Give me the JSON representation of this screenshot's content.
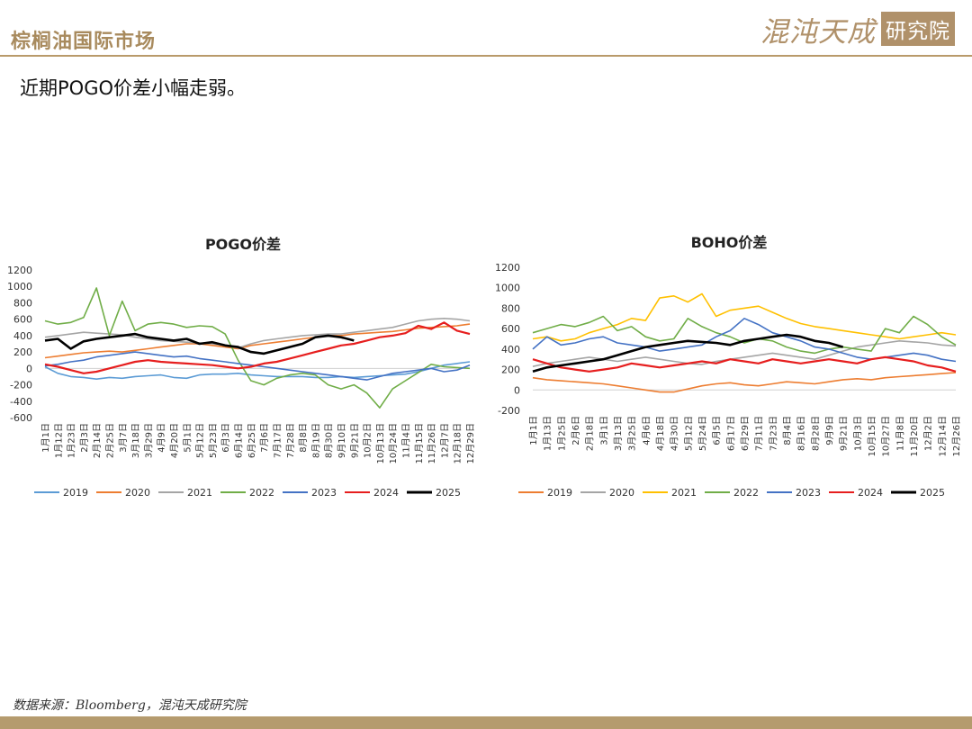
{
  "header": {
    "title": "棕榈油国际市场"
  },
  "logo": {
    "main": "混沌天成",
    "box": "研究院"
  },
  "subtitle": "近期POGO价差小幅走弱。",
  "footer": {
    "source": "数据来源：Bloomberg，混沌天成研究院"
  },
  "colors": {
    "accent": "#b99a6a"
  },
  "chart_data": [
    {
      "type": "line",
      "title": "POGO价差",
      "ylim": [
        -600,
        1200
      ],
      "yticks": [
        -600,
        -400,
        -200,
        0,
        200,
        400,
        600,
        800,
        1000,
        1200
      ],
      "xticks": [
        "1月1日",
        "1月12日",
        "1月23日",
        "2月3日",
        "2月14日",
        "2月25日",
        "3月7日",
        "3月18日",
        "3月29日",
        "4月9日",
        "4月20日",
        "5月1日",
        "5月12日",
        "5月23日",
        "6月3日",
        "6月14日",
        "6月25日",
        "7月6日",
        "7月17日",
        "7月28日",
        "8月8日",
        "8月19日",
        "8月30日",
        "9月10日",
        "9月21日",
        "10月2日",
        "10月13日",
        "10月24日",
        "11月4日",
        "11月15日",
        "11月26日",
        "12月7日",
        "12月18日",
        "12月29日"
      ],
      "grid": false,
      "legend_position": "bottom",
      "series": [
        {
          "name": "2019",
          "color": "#5b9bd5",
          "values": [
            20,
            -60,
            -100,
            -110,
            -130,
            -110,
            -120,
            -100,
            -90,
            -80,
            -110,
            -120,
            -80,
            -70,
            -70,
            -60,
            -80,
            -90,
            -100,
            -100,
            -100,
            -110,
            -110,
            -100,
            -110,
            -100,
            -90,
            -80,
            -70,
            -40,
            0,
            40,
            60,
            80
          ]
        },
        {
          "name": "2020",
          "color": "#ed7d31",
          "values": [
            130,
            150,
            170,
            190,
            200,
            210,
            200,
            220,
            240,
            260,
            280,
            300,
            300,
            280,
            260,
            240,
            280,
            300,
            320,
            340,
            360,
            380,
            400,
            400,
            420,
            430,
            440,
            450,
            470,
            490,
            500,
            510,
            520,
            540
          ]
        },
        {
          "name": "2021",
          "color": "#a5a5a5",
          "values": [
            380,
            400,
            420,
            440,
            430,
            420,
            410,
            380,
            360,
            340,
            330,
            320,
            310,
            300,
            280,
            250,
            300,
            340,
            360,
            380,
            400,
            410,
            420,
            420,
            440,
            460,
            480,
            500,
            540,
            580,
            600,
            610,
            600,
            580
          ]
        },
        {
          "name": "2022",
          "color": "#70ad47",
          "values": [
            580,
            540,
            560,
            620,
            980,
            400,
            820,
            460,
            540,
            560,
            540,
            500,
            520,
            510,
            420,
            100,
            -150,
            -200,
            -120,
            -80,
            -60,
            -80,
            -200,
            -250,
            -200,
            -300,
            -480,
            -250,
            -150,
            -50,
            50,
            20,
            10,
            0
          ]
        },
        {
          "name": "2023",
          "color": "#4472c4",
          "values": [
            30,
            50,
            80,
            100,
            140,
            160,
            180,
            200,
            180,
            160,
            140,
            150,
            120,
            100,
            80,
            60,
            40,
            20,
            0,
            -20,
            -40,
            -60,
            -80,
            -100,
            -120,
            -140,
            -100,
            -60,
            -40,
            -20,
            0,
            -40,
            -20,
            40
          ]
        },
        {
          "name": "2024",
          "color": "#e61e1e",
          "values": [
            50,
            20,
            -20,
            -60,
            -40,
            0,
            40,
            80,
            100,
            80,
            70,
            60,
            50,
            40,
            20,
            0,
            20,
            60,
            80,
            120,
            160,
            200,
            240,
            280,
            300,
            340,
            380,
            400,
            430,
            520,
            480,
            560,
            460,
            420
          ]
        },
        {
          "name": "2025",
          "color": "#000000",
          "values": [
            340,
            360,
            240,
            330,
            360,
            380,
            400,
            420,
            380,
            360,
            340,
            360,
            300,
            320,
            280,
            260,
            200,
            180,
            220,
            260,
            300,
            380,
            400,
            380,
            340,
            null,
            null,
            null,
            null,
            null,
            null,
            null,
            null,
            null
          ]
        }
      ]
    },
    {
      "type": "line",
      "title": "BOHO价差",
      "ylim": [
        -200,
        1200
      ],
      "yticks": [
        -200,
        0,
        200,
        400,
        600,
        800,
        1000,
        1200
      ],
      "xticks": [
        "1月1日",
        "1月13日",
        "1月25日",
        "2月6日",
        "2月18日",
        "3月1日",
        "3月13日",
        "3月25日",
        "4月6日",
        "4月18日",
        "4月30日",
        "5月12日",
        "5月24日",
        "6月5日",
        "6月17日",
        "6月29日",
        "7月11日",
        "7月23日",
        "8月4日",
        "8月16日",
        "8月28日",
        "9月9日",
        "9月21日",
        "10月3日",
        "10月15日",
        "10月27日",
        "11月8日",
        "11月20日",
        "12月2日",
        "12月14日",
        "12月26日"
      ],
      "grid": false,
      "legend_position": "bottom",
      "series": [
        {
          "name": "2019",
          "color": "#ed7d31",
          "values": [
            120,
            100,
            90,
            80,
            70,
            60,
            40,
            20,
            0,
            -20,
            -20,
            10,
            40,
            60,
            70,
            50,
            40,
            60,
            80,
            70,
            60,
            80,
            100,
            110,
            100,
            120,
            130,
            140,
            150,
            160,
            170
          ]
        },
        {
          "name": "2020",
          "color": "#a5a5a5",
          "values": [
            230,
            260,
            280,
            300,
            320,
            300,
            280,
            300,
            320,
            300,
            280,
            260,
            250,
            280,
            300,
            320,
            340,
            360,
            340,
            320,
            300,
            340,
            380,
            420,
            440,
            460,
            480,
            470,
            460,
            440,
            430
          ]
        },
        {
          "name": "2021",
          "color": "#ffc000",
          "values": [
            500,
            520,
            480,
            500,
            560,
            600,
            640,
            700,
            680,
            900,
            920,
            860,
            940,
            720,
            780,
            800,
            820,
            760,
            700,
            650,
            620,
            600,
            580,
            560,
            540,
            520,
            500,
            520,
            540,
            560,
            540
          ]
        },
        {
          "name": "2022",
          "color": "#70ad47",
          "values": [
            560,
            600,
            640,
            620,
            660,
            720,
            580,
            620,
            520,
            480,
            500,
            700,
            620,
            560,
            520,
            460,
            500,
            480,
            420,
            380,
            360,
            400,
            420,
            400,
            380,
            600,
            560,
            720,
            640,
            520,
            440
          ]
        },
        {
          "name": "2023",
          "color": "#4472c4",
          "values": [
            400,
            520,
            440,
            460,
            500,
            520,
            460,
            440,
            420,
            380,
            400,
            420,
            440,
            520,
            580,
            700,
            640,
            560,
            520,
            480,
            420,
            400,
            360,
            320,
            300,
            320,
            340,
            360,
            340,
            300,
            280
          ]
        },
        {
          "name": "2024",
          "color": "#e61e1e",
          "values": [
            300,
            260,
            220,
            200,
            180,
            200,
            220,
            260,
            240,
            220,
            240,
            260,
            280,
            260,
            300,
            280,
            260,
            300,
            280,
            260,
            280,
            300,
            280,
            260,
            300,
            320,
            300,
            280,
            240,
            220,
            180
          ]
        },
        {
          "name": "2025",
          "color": "#000000",
          "values": [
            180,
            220,
            240,
            260,
            280,
            300,
            340,
            380,
            420,
            440,
            460,
            480,
            470,
            460,
            440,
            480,
            500,
            520,
            540,
            520,
            480,
            460,
            420,
            null,
            null,
            null,
            null,
            null,
            null,
            null,
            null
          ]
        }
      ]
    }
  ]
}
